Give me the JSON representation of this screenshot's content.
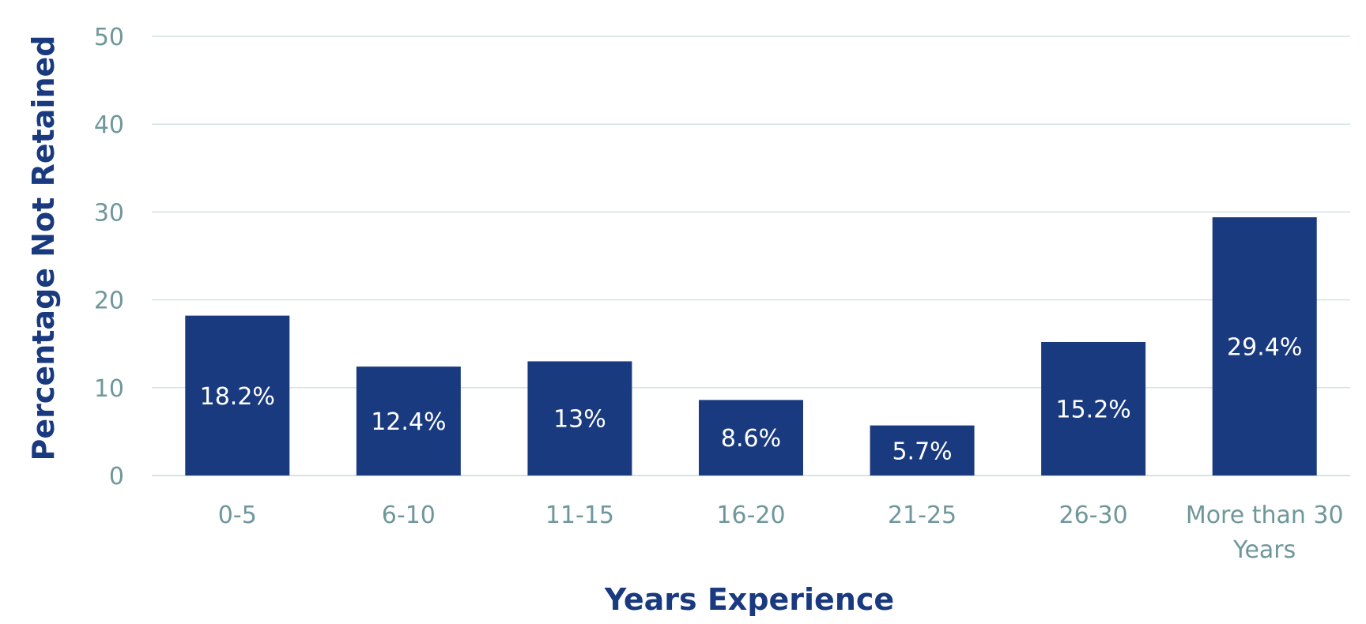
{
  "chart_data": {
    "type": "bar",
    "categories": [
      "0-5",
      "6-10",
      "11-15",
      "16-20",
      "21-25",
      "26-30",
      "More than 30 Years"
    ],
    "category_lines": [
      [
        "0-5"
      ],
      [
        "6-10"
      ],
      [
        "11-15"
      ],
      [
        "16-20"
      ],
      [
        "21-25"
      ],
      [
        "26-30"
      ],
      [
        "More than 30",
        "Years"
      ]
    ],
    "values": [
      18.2,
      12.4,
      13,
      8.6,
      5.7,
      15.2,
      29.4
    ],
    "data_labels": [
      "18.2%",
      "12.4%",
      "13%",
      "8.6%",
      "5.7%",
      "15.2%",
      "29.4%"
    ],
    "title": "",
    "xlabel": "Years Experience",
    "ylabel": "Percentage Not Retained",
    "ylim": [
      0,
      50
    ],
    "yticks": [
      0,
      10,
      20,
      30,
      40,
      50
    ],
    "grid": true,
    "legend": "none",
    "colors": {
      "bar": "#1a3a80",
      "axis_title": "#1a3a80",
      "tick_label": "#6f979b",
      "gridline": "#d3e3e3",
      "data_label": "#ffffff"
    }
  }
}
